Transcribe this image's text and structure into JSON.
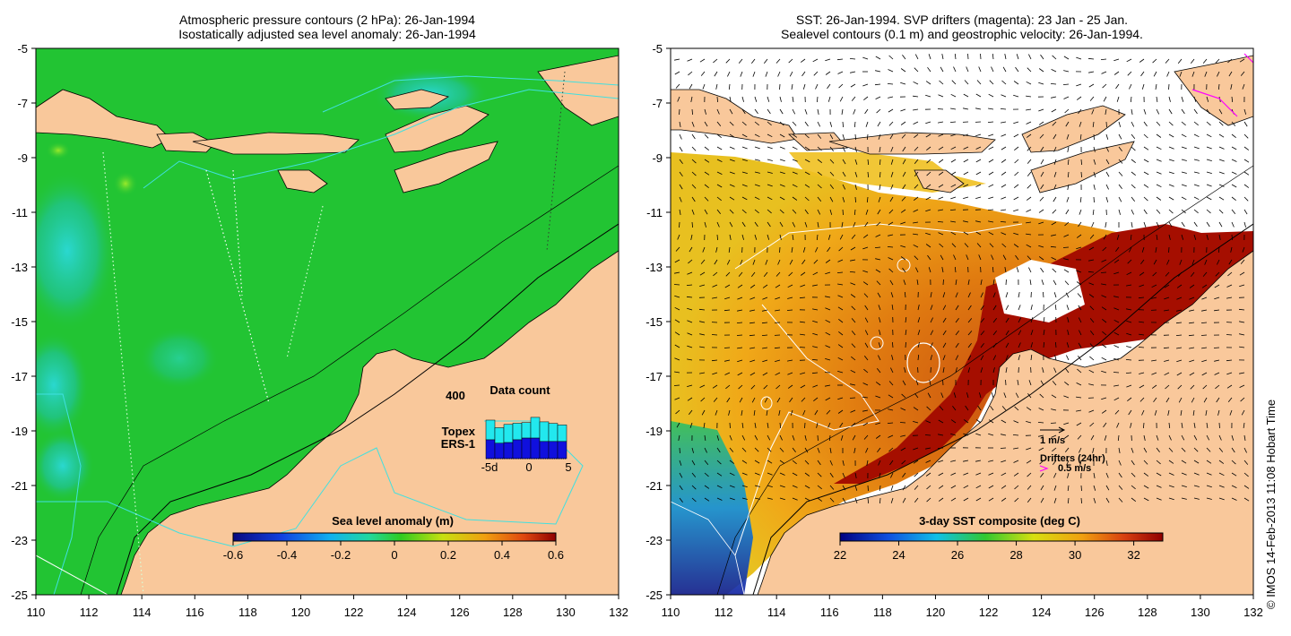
{
  "left_panel": {
    "title_line1": "Atmospheric pressure contours (2 hPa): 26-Jan-1994",
    "title_line2": "Isostatically adjusted sea level anomaly: 26-Jan-1994",
    "colorbar_label": "Sea level anomaly (m)",
    "colorbar_ticks": [
      "-0.6",
      "-0.4",
      "-0.2",
      "0",
      "0.2",
      "0.4",
      "0.6"
    ],
    "inset": {
      "title": "Data count",
      "ymax_label": "400",
      "legend_topex": "Topex",
      "legend_ers1": "ERS-1",
      "x_left": "-5d",
      "x_mid": "0",
      "x_right": "5",
      "bars": [
        {
          "topex": 0.38,
          "ers1": 0.55
        },
        {
          "topex": 0.3,
          "ers1": 0.45
        },
        {
          "topex": 0.35,
          "ers1": 0.47
        },
        {
          "topex": 0.32,
          "ers1": 0.55
        },
        {
          "topex": 0.3,
          "ers1": 0.6
        },
        {
          "topex": 0.4,
          "ers1": 0.6
        },
        {
          "topex": 0.38,
          "ers1": 0.5
        },
        {
          "topex": 0.35,
          "ers1": 0.5
        },
        {
          "topex": 0.32,
          "ers1": 0.5
        }
      ]
    }
  },
  "right_panel": {
    "title_line1": "SST: 26-Jan-1994. SVP drifters (magenta): 23 Jan - 25 Jan.",
    "title_line2": "Sealevel contours (0.1 m) and geostrophic velocity: 26-Jan-1994.",
    "colorbar_label": "3-day SST composite (deg C)",
    "colorbar_ticks": [
      "22",
      "24",
      "26",
      "28",
      "30",
      "32"
    ],
    "velocity_scale_label": "1 m/s",
    "drifter_label": "Drifters (24hr)",
    "drifter_speed_label": "0.5 m/s"
  },
  "axes": {
    "lat_labels": [
      "-5",
      "-7",
      "-9",
      "-11",
      "-13",
      "-15",
      "-17",
      "-19",
      "-21",
      "-23",
      "-25"
    ],
    "lon_labels": [
      "110",
      "112",
      "114",
      "116",
      "118",
      "120",
      "122",
      "124",
      "126",
      "128",
      "130",
      "132"
    ]
  },
  "credit": "© IMOS 14-Feb-2013 11:08 Hobart Time",
  "colors": {
    "land": "#f9c89b",
    "ocean_green": "#22c433",
    "topex": "#22e8ee",
    "ers1": "#1010dd",
    "contour_cyan": "#40e0e0",
    "sst_hot": "#a50e00",
    "drifter": "#ff00ff"
  }
}
